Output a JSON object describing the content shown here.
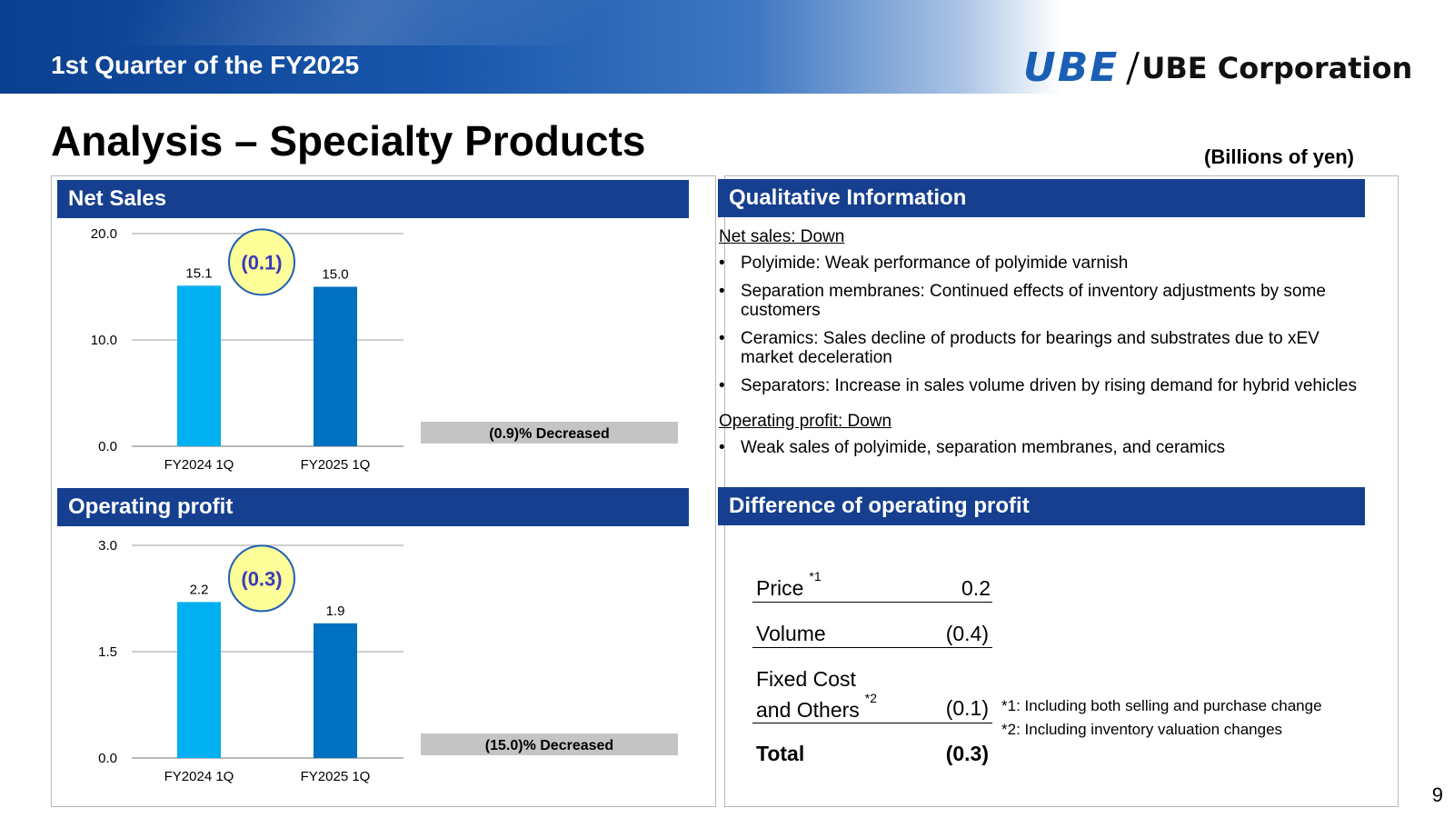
{
  "header": {
    "title": "1st Quarter of the FY2025",
    "logo_mark": "UBE",
    "logo_name": "UBE Corporation"
  },
  "page": {
    "title": "Analysis – Specialty Products",
    "unit": "(Billions of yen)",
    "number": "9"
  },
  "sections": {
    "net_sales": "Net Sales",
    "operating_profit": "Operating profit",
    "qualitative": "Qualitative Information",
    "difference": "Difference of operating profit"
  },
  "chart_data": [
    {
      "type": "bar",
      "title": "Net Sales",
      "categories": [
        "FY2024 1Q",
        "FY2025 1Q"
      ],
      "values": [
        15.1,
        15.0
      ],
      "value_labels": [
        "15.1",
        "15.0"
      ],
      "ylim": [
        0,
        20
      ],
      "yticks": [
        0,
        10,
        20
      ],
      "ytick_labels": [
        "0.0",
        "10.0",
        "20.0"
      ],
      "grid": true,
      "colors": [
        "#00b0f0",
        "#0070c0"
      ],
      "change_label": "(0.1)",
      "change_note": "(0.9)% Decreased"
    },
    {
      "type": "bar",
      "title": "Operating profit",
      "categories": [
        "FY2024 1Q",
        "FY2025 1Q"
      ],
      "values": [
        2.2,
        1.9
      ],
      "value_labels": [
        "2.2",
        "1.9"
      ],
      "ylim": [
        0,
        3
      ],
      "yticks": [
        0,
        1.5,
        3
      ],
      "ytick_labels": [
        "0.0",
        "1.5",
        "3.0"
      ],
      "grid": true,
      "colors": [
        "#00b0f0",
        "#0070c0"
      ],
      "change_label": "(0.3)",
      "change_note": "(15.0)% Decreased"
    }
  ],
  "qualitative": {
    "net_sales_heading": "Net sales: Down",
    "net_sales_items": [
      "Polyimide: Weak performance of polyimide varnish",
      "Separation membranes: Continued effects of inventory adjustments by some customers",
      "Ceramics: Sales decline of products for bearings and substrates due to xEV market deceleration",
      "Separators: Increase in sales volume driven by rising demand for hybrid vehicles"
    ],
    "op_heading": "Operating profit: Down",
    "op_items": [
      "Weak sales of polyimide, separation membranes, and ceramics"
    ]
  },
  "difference": {
    "price_label": "Price",
    "price_note": "*1",
    "price_value": "0.2",
    "volume_label": "Volume",
    "volume_value": "(0.4)",
    "fixed_label_1": "Fixed Cost",
    "fixed_label_2": "and Others",
    "fixed_note": "*2",
    "fixed_value": "(0.1)",
    "total_label": "Total",
    "total_value": "(0.3)",
    "footnote_1": "*1: Including both selling and purchase change",
    "footnote_2": "*2: Including inventory valuation changes"
  }
}
